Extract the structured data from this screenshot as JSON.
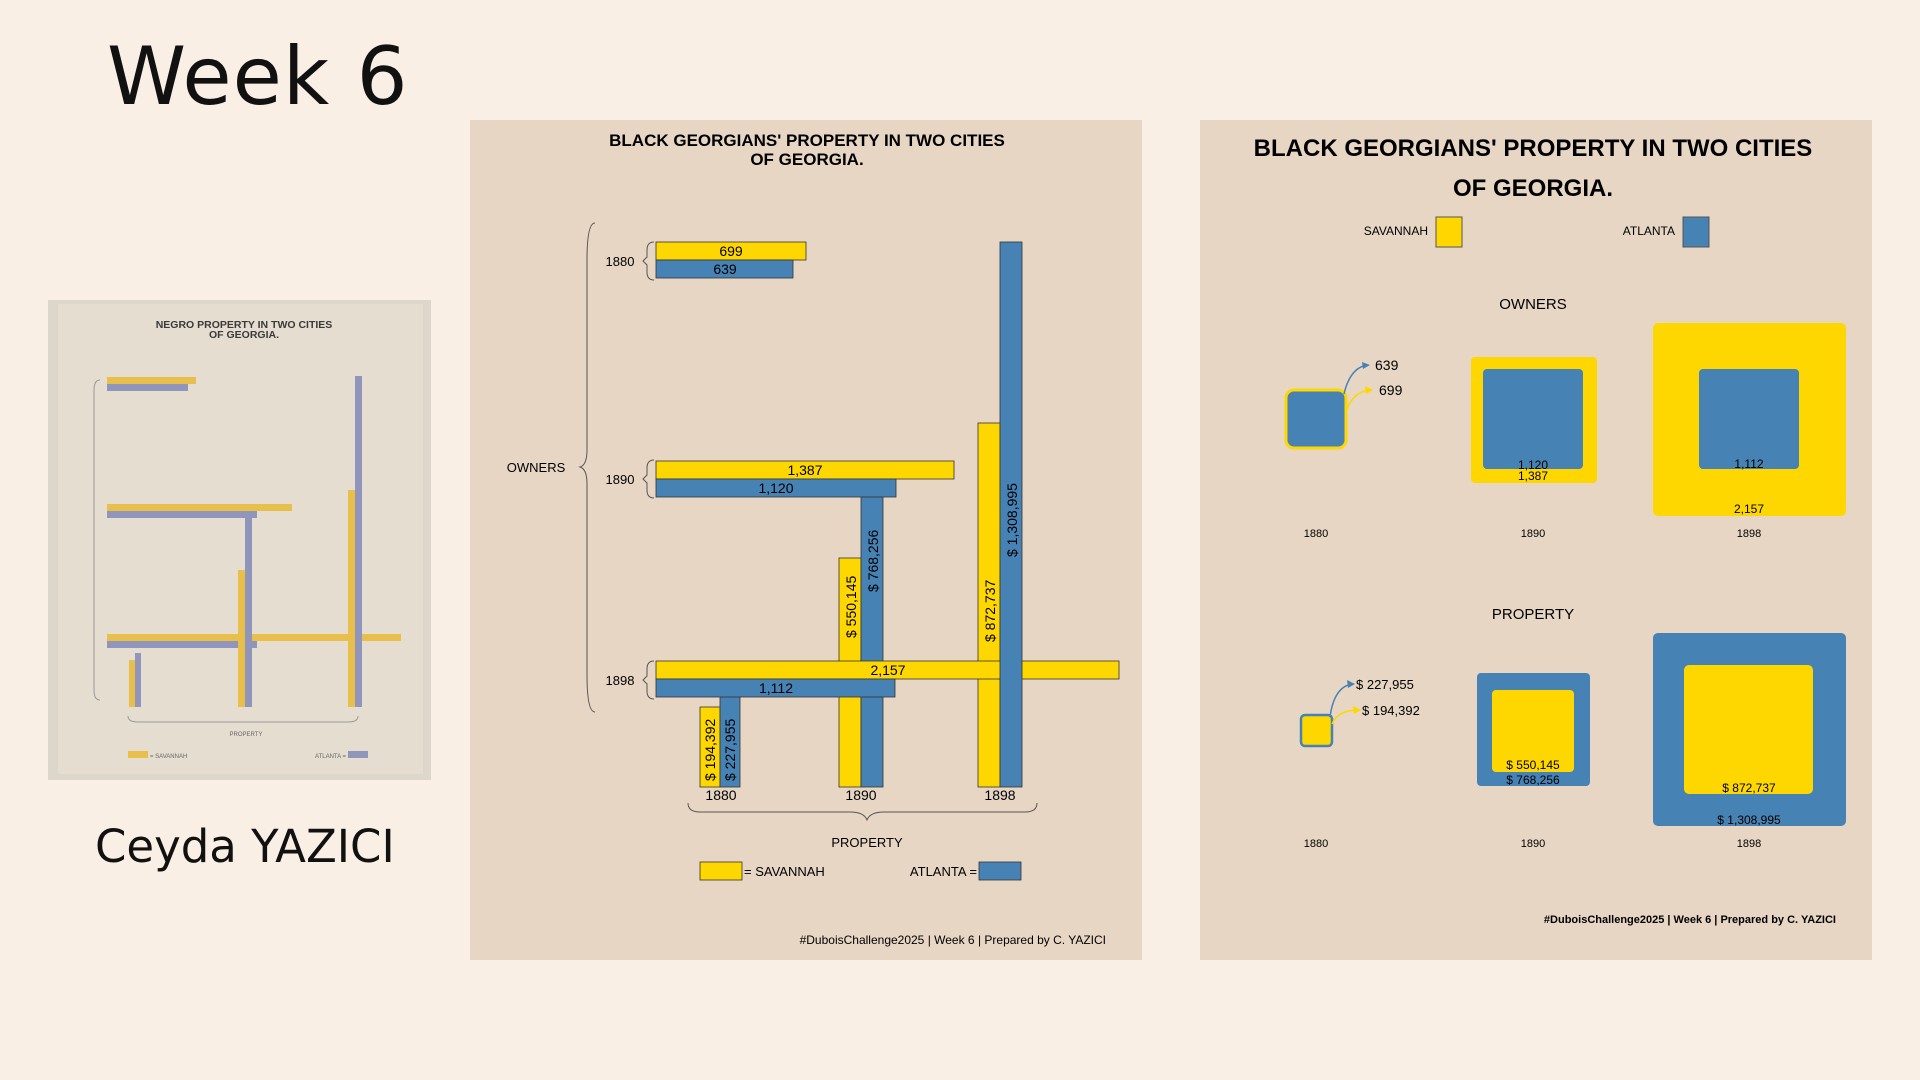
{
  "slide": {
    "title": "Week 6",
    "author": "Ceyda YAZICI"
  },
  "thumbnail": {
    "title_line1": "NEGRO PROPERTY IN TWO CITIES",
    "title_line2": "OF GEORGIA.",
    "caption": "PROPERTY",
    "legend_savannah": "= SAVANNAH",
    "legend_atlanta": "ATLANTA ="
  },
  "colors": {
    "savannah": "#ffd700",
    "atlanta": "#4682b4",
    "panel_bg": "#e7d6c4",
    "slide_bg": "#f9efe5"
  },
  "chart_data": [
    {
      "type": "bar",
      "title_line1": "BLACK GEORGIANS' PROPERTY IN TWO CITIES",
      "title_line2": "OF GEORGIA.",
      "owners_label": "OWNERS",
      "property_label": "PROPERTY",
      "years": [
        "1880",
        "1890",
        "1898"
      ],
      "series": [
        {
          "name": "SAVANNAH",
          "owners": [
            699,
            1387,
            2157
          ],
          "property": [
            194392,
            550145,
            872737
          ]
        },
        {
          "name": "ATLANTA",
          "owners": [
            639,
            1120,
            1112
          ],
          "property": [
            227955,
            768256,
            1308995
          ]
        }
      ],
      "owner_labels": {
        "savannah": [
          "699",
          "1,387",
          "2,157"
        ],
        "atlanta": [
          "639",
          "1,120",
          "1,112"
        ]
      },
      "property_labels": {
        "savannah": [
          "$ 194,392",
          "$ 550,145",
          "$ 872,737"
        ],
        "atlanta": [
          "$ 227,955",
          "$ 768,256",
          "$ 1,308,995"
        ]
      },
      "legend_savannah": "= SAVANNAH",
      "legend_atlanta": "ATLANTA =",
      "footer": "#DuboisChallenge2025 | Week 6 | Prepared by C. YAZICI"
    },
    {
      "type": "area",
      "title_line1": "BLACK GEORGIANS' PROPERTY IN TWO CITIES",
      "title_line2": "OF GEORGIA.",
      "legend_savannah": "SAVANNAH",
      "legend_atlanta": "ATLANTA",
      "owners_heading": "OWNERS",
      "property_heading": "PROPERTY",
      "years": [
        "1880",
        "1890",
        "1898"
      ],
      "owner_labels": {
        "savannah": [
          "699",
          "1,387",
          "2,157"
        ],
        "atlanta": [
          "639",
          "1,120",
          "1,112"
        ]
      },
      "property_labels": {
        "savannah": [
          "$ 194,392",
          "$ 550,145",
          "$ 872,737"
        ],
        "atlanta": [
          "$ 227,955",
          "$ 768,256",
          "$ 1,308,995"
        ]
      },
      "footer": "#DuboisChallenge2025 | Week 6 | Prepared by C. YAZICI"
    }
  ]
}
